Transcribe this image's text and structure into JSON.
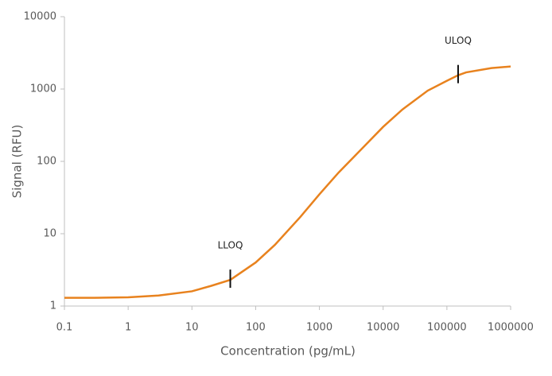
{
  "chart_data": {
    "type": "line",
    "x_label": "Concentration (pg/mL)",
    "y_label": "Signal (RFU)",
    "x_scale": "log",
    "y_scale": "log",
    "x": [
      0.1,
      0.3,
      1,
      3,
      10,
      20,
      40,
      100,
      200,
      500,
      1000,
      2000,
      5000,
      10000,
      20000,
      50000,
      100000,
      150000,
      200000,
      500000,
      1000000
    ],
    "series": [
      {
        "color": "#e8821e",
        "values": [
          1.3,
          1.3,
          1.32,
          1.4,
          1.6,
          1.9,
          2.3,
          4,
          7,
          17,
          35,
          70,
          160,
          300,
          520,
          950,
          1300,
          1550,
          1700,
          1950,
          2050
        ]
      }
    ],
    "xlim": [
      0.1,
      1000000
    ],
    "xticks": [
      0.1,
      1,
      10,
      100,
      1000,
      10000,
      100000,
      1000000
    ],
    "ylim": [
      1,
      10000
    ],
    "yticks": [
      1,
      10,
      100,
      1000,
      10000
    ],
    "grid": false,
    "annotations": [
      {
        "text": "LLOQ",
        "x": 40,
        "y": 2.3
      },
      {
        "text": "ULOQ",
        "x": 150000,
        "y": 1550
      }
    ]
  }
}
